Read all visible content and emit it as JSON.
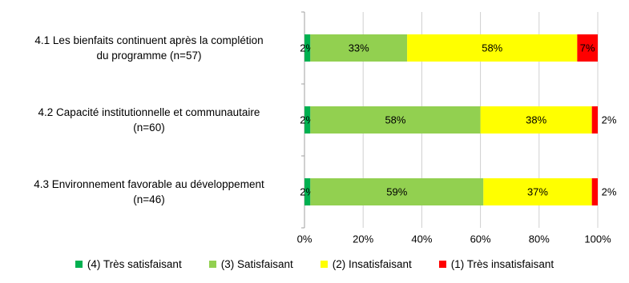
{
  "chart_data": {
    "type": "stacked_barh",
    "categories": [
      "4.1 Les bienfaits continuent après la complétion\ndu programme (n=57)",
      "4.2 Capacité institutionnelle et communautaire\n(n=60)",
      "4.3 Environnement favorable au développement\n(n=46)"
    ],
    "series": [
      {
        "name": "(4) Très satisfaisant",
        "color": "#00b050",
        "values": [
          2,
          2,
          2
        ],
        "value_labels": [
          "2%",
          "2%",
          "2%"
        ]
      },
      {
        "name": "(3) Satisfaisant",
        "color": "#92d050",
        "values": [
          33,
          58,
          59
        ],
        "value_labels": [
          "33%",
          "58%",
          "59%"
        ]
      },
      {
        "name": "(2) Insatisfaisant",
        "color": "#ffff00",
        "values": [
          58,
          38,
          37
        ],
        "value_labels": [
          "58%",
          "38%",
          "37%"
        ]
      },
      {
        "name": "(1) Très insatisfaisant",
        "color": "#ff0000",
        "values": [
          7,
          2,
          2
        ],
        "value_labels": [
          "7%",
          "2%",
          "2%"
        ]
      }
    ],
    "xlim": [
      0,
      100
    ],
    "xticks": [
      {
        "value": 0,
        "label": "0%"
      },
      {
        "value": 20,
        "label": "20%"
      },
      {
        "value": 40,
        "label": "40%"
      },
      {
        "value": 60,
        "label": "60%"
      },
      {
        "value": 80,
        "label": "80%"
      },
      {
        "value": 100,
        "label": "100%"
      }
    ],
    "grid": true
  }
}
